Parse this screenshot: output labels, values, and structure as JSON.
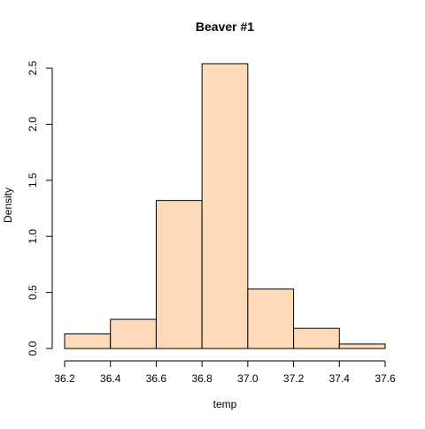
{
  "chart_data": {
    "type": "bar",
    "subtype": "histogram",
    "title": "Beaver #1",
    "xlabel": "temp",
    "ylabel": "Density",
    "bins": [
      {
        "start": 36.2,
        "end": 36.4,
        "density": 0.13
      },
      {
        "start": 36.4,
        "end": 36.6,
        "density": 0.26
      },
      {
        "start": 36.6,
        "end": 36.8,
        "density": 1.32
      },
      {
        "start": 36.8,
        "end": 37.0,
        "density": 2.54
      },
      {
        "start": 37.0,
        "end": 37.2,
        "density": 0.53
      },
      {
        "start": 37.2,
        "end": 37.4,
        "density": 0.18
      },
      {
        "start": 37.4,
        "end": 37.6,
        "density": 0.04
      }
    ],
    "xlim": [
      36.2,
      37.6
    ],
    "ylim": [
      0,
      2.54
    ],
    "x_ticks": [
      "36.2",
      "36.4",
      "36.6",
      "36.8",
      "37.0",
      "37.2",
      "37.4",
      "37.6"
    ],
    "y_ticks": [
      "0.0",
      "0.5",
      "1.0",
      "1.5",
      "2.0",
      "2.5"
    ],
    "bar_fill": "#FFDAB9",
    "bar_stroke": "#000000",
    "grid": false,
    "legend": "none"
  }
}
